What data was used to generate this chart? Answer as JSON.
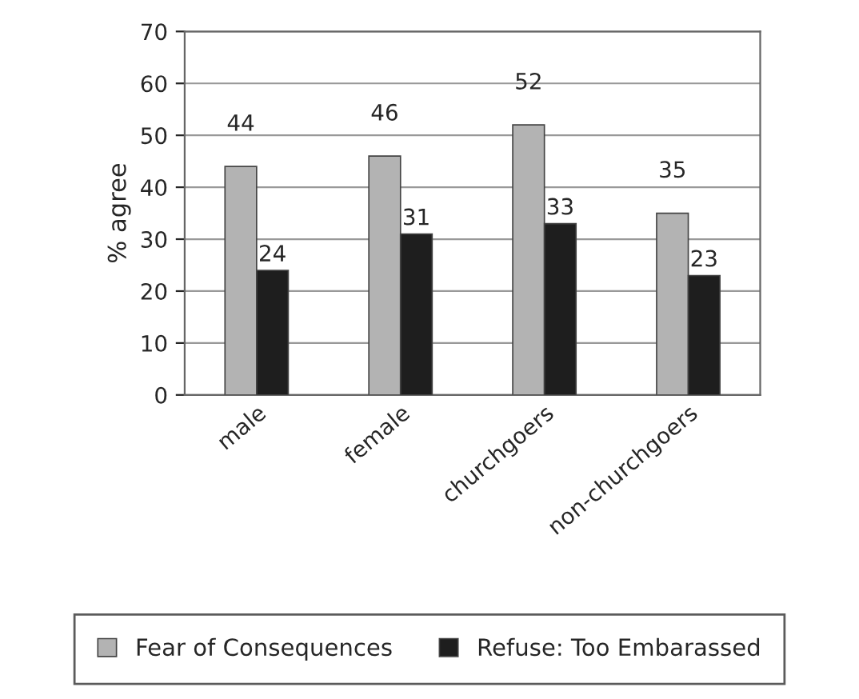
{
  "chart_data": {
    "type": "bar",
    "ylabel": "% agree",
    "categories": [
      "male",
      "female",
      "churchgoers",
      "non-churchgoers"
    ],
    "series": [
      {
        "name": "Fear of Consequences",
        "color": "#b3b3b3",
        "values": [
          44,
          46,
          52,
          35
        ]
      },
      {
        "name": "Refuse: Too Embarassed",
        "color": "#1e1e1e",
        "values": [
          24,
          31,
          33,
          23
        ]
      }
    ],
    "ylim": [
      0,
      70
    ],
    "yticks": [
      0,
      10,
      20,
      30,
      40,
      50,
      60,
      70
    ],
    "grid": "y",
    "legend": "bottom",
    "data_labels": true
  }
}
